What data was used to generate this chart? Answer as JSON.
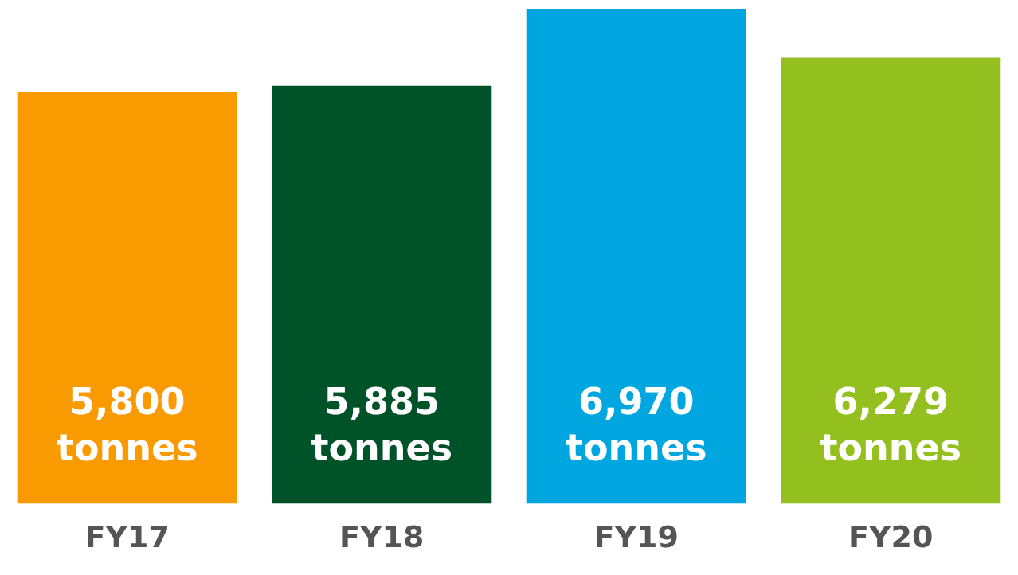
{
  "chart_data": {
    "type": "bar",
    "categories": [
      "FY17",
      "FY18",
      "FY19",
      "FY20"
    ],
    "values": [
      5800,
      5885,
      6970,
      6279
    ],
    "colors": [
      "#f99b00",
      "#005229",
      "#00a6e0",
      "#93c01f"
    ],
    "value_labels": [
      "5,800 tonnes",
      "5,885 tonnes",
      "6,970 tonnes",
      "6,279 tonnes"
    ],
    "grid": false,
    "legend": false,
    "tick_labels": "x"
  }
}
